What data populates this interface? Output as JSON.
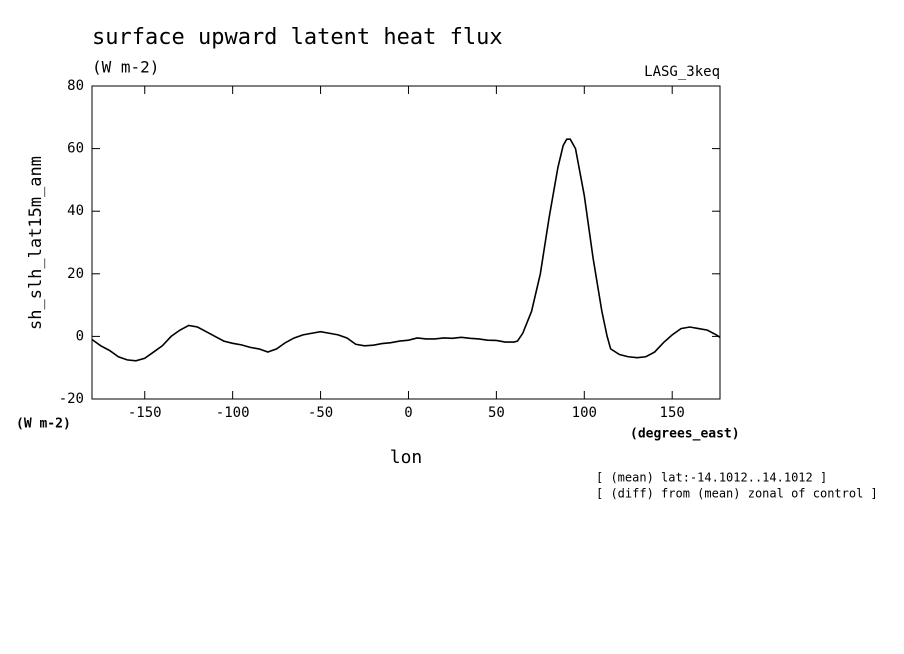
{
  "chart_data": {
    "type": "line",
    "title": "surface upward latent heat flux",
    "subtitle": "(W m-2)",
    "source": "LASG_3keq",
    "ylabel": "sh_slh_lat15m_anm",
    "yunits": "(W m-2)",
    "xunits": "(degrees_east)",
    "xlabel": "lon",
    "notes": [
      "[ (mean) lat:-14.1012..14.1012 ]",
      "[ (diff) from (mean) zonal of control ]"
    ],
    "x": [
      -180,
      -175,
      -170,
      -165,
      -160,
      -155,
      -150,
      -145,
      -140,
      -135,
      -130,
      -125,
      -120,
      -115,
      -110,
      -105,
      -100,
      -95,
      -90,
      -85,
      -80,
      -75,
      -70,
      -65,
      -60,
      -55,
      -50,
      -45,
      -40,
      -35,
      -30,
      -25,
      -20,
      -15,
      -10,
      -5,
      0,
      5,
      10,
      15,
      20,
      25,
      30,
      35,
      40,
      45,
      50,
      55,
      60,
      62,
      65,
      70,
      75,
      80,
      85,
      88,
      90,
      92,
      95,
      100,
      105,
      110,
      113,
      115,
      120,
      125,
      130,
      135,
      140,
      145,
      150,
      155,
      160,
      165,
      170,
      175,
      177.1875
    ],
    "series": [
      {
        "name": "sh_slh_lat15m_anm",
        "color": "#000000",
        "values": [
          -1,
          -3,
          -4.5,
          -6.5,
          -7.5,
          -7.8,
          -7,
          -5,
          -3,
          0,
          2,
          3.5,
          3,
          1.5,
          0,
          -1.5,
          -2.2,
          -2.7,
          -3.5,
          -4,
          -5,
          -4,
          -2,
          -0.5,
          0.5,
          1,
          1.5,
          1,
          0.5,
          -0.5,
          -2.5,
          -3,
          -2.8,
          -2.3,
          -2,
          -1.5,
          -1.2,
          -0.5,
          -0.8,
          -0.8,
          -0.5,
          -0.6,
          -0.3,
          -0.6,
          -0.8,
          -1.2,
          -1.3,
          -1.8,
          -1.8,
          -1.5,
          1,
          8,
          20,
          38,
          54,
          61,
          63,
          63,
          60,
          45,
          25,
          8,
          0,
          -4,
          -5.8,
          -6.5,
          -6.8,
          -6.5,
          -5,
          -2,
          0.5,
          2.5,
          3,
          2.5,
          2,
          0.5,
          -0.3
        ]
      }
    ],
    "xlim": [
      -180,
      177.1875
    ],
    "ylim": [
      -20,
      80
    ],
    "xticks": [
      -150,
      -100,
      -50,
      0,
      50,
      100,
      150
    ],
    "yticks": [
      -20,
      0,
      20,
      40,
      60,
      80
    ],
    "grid": false
  }
}
